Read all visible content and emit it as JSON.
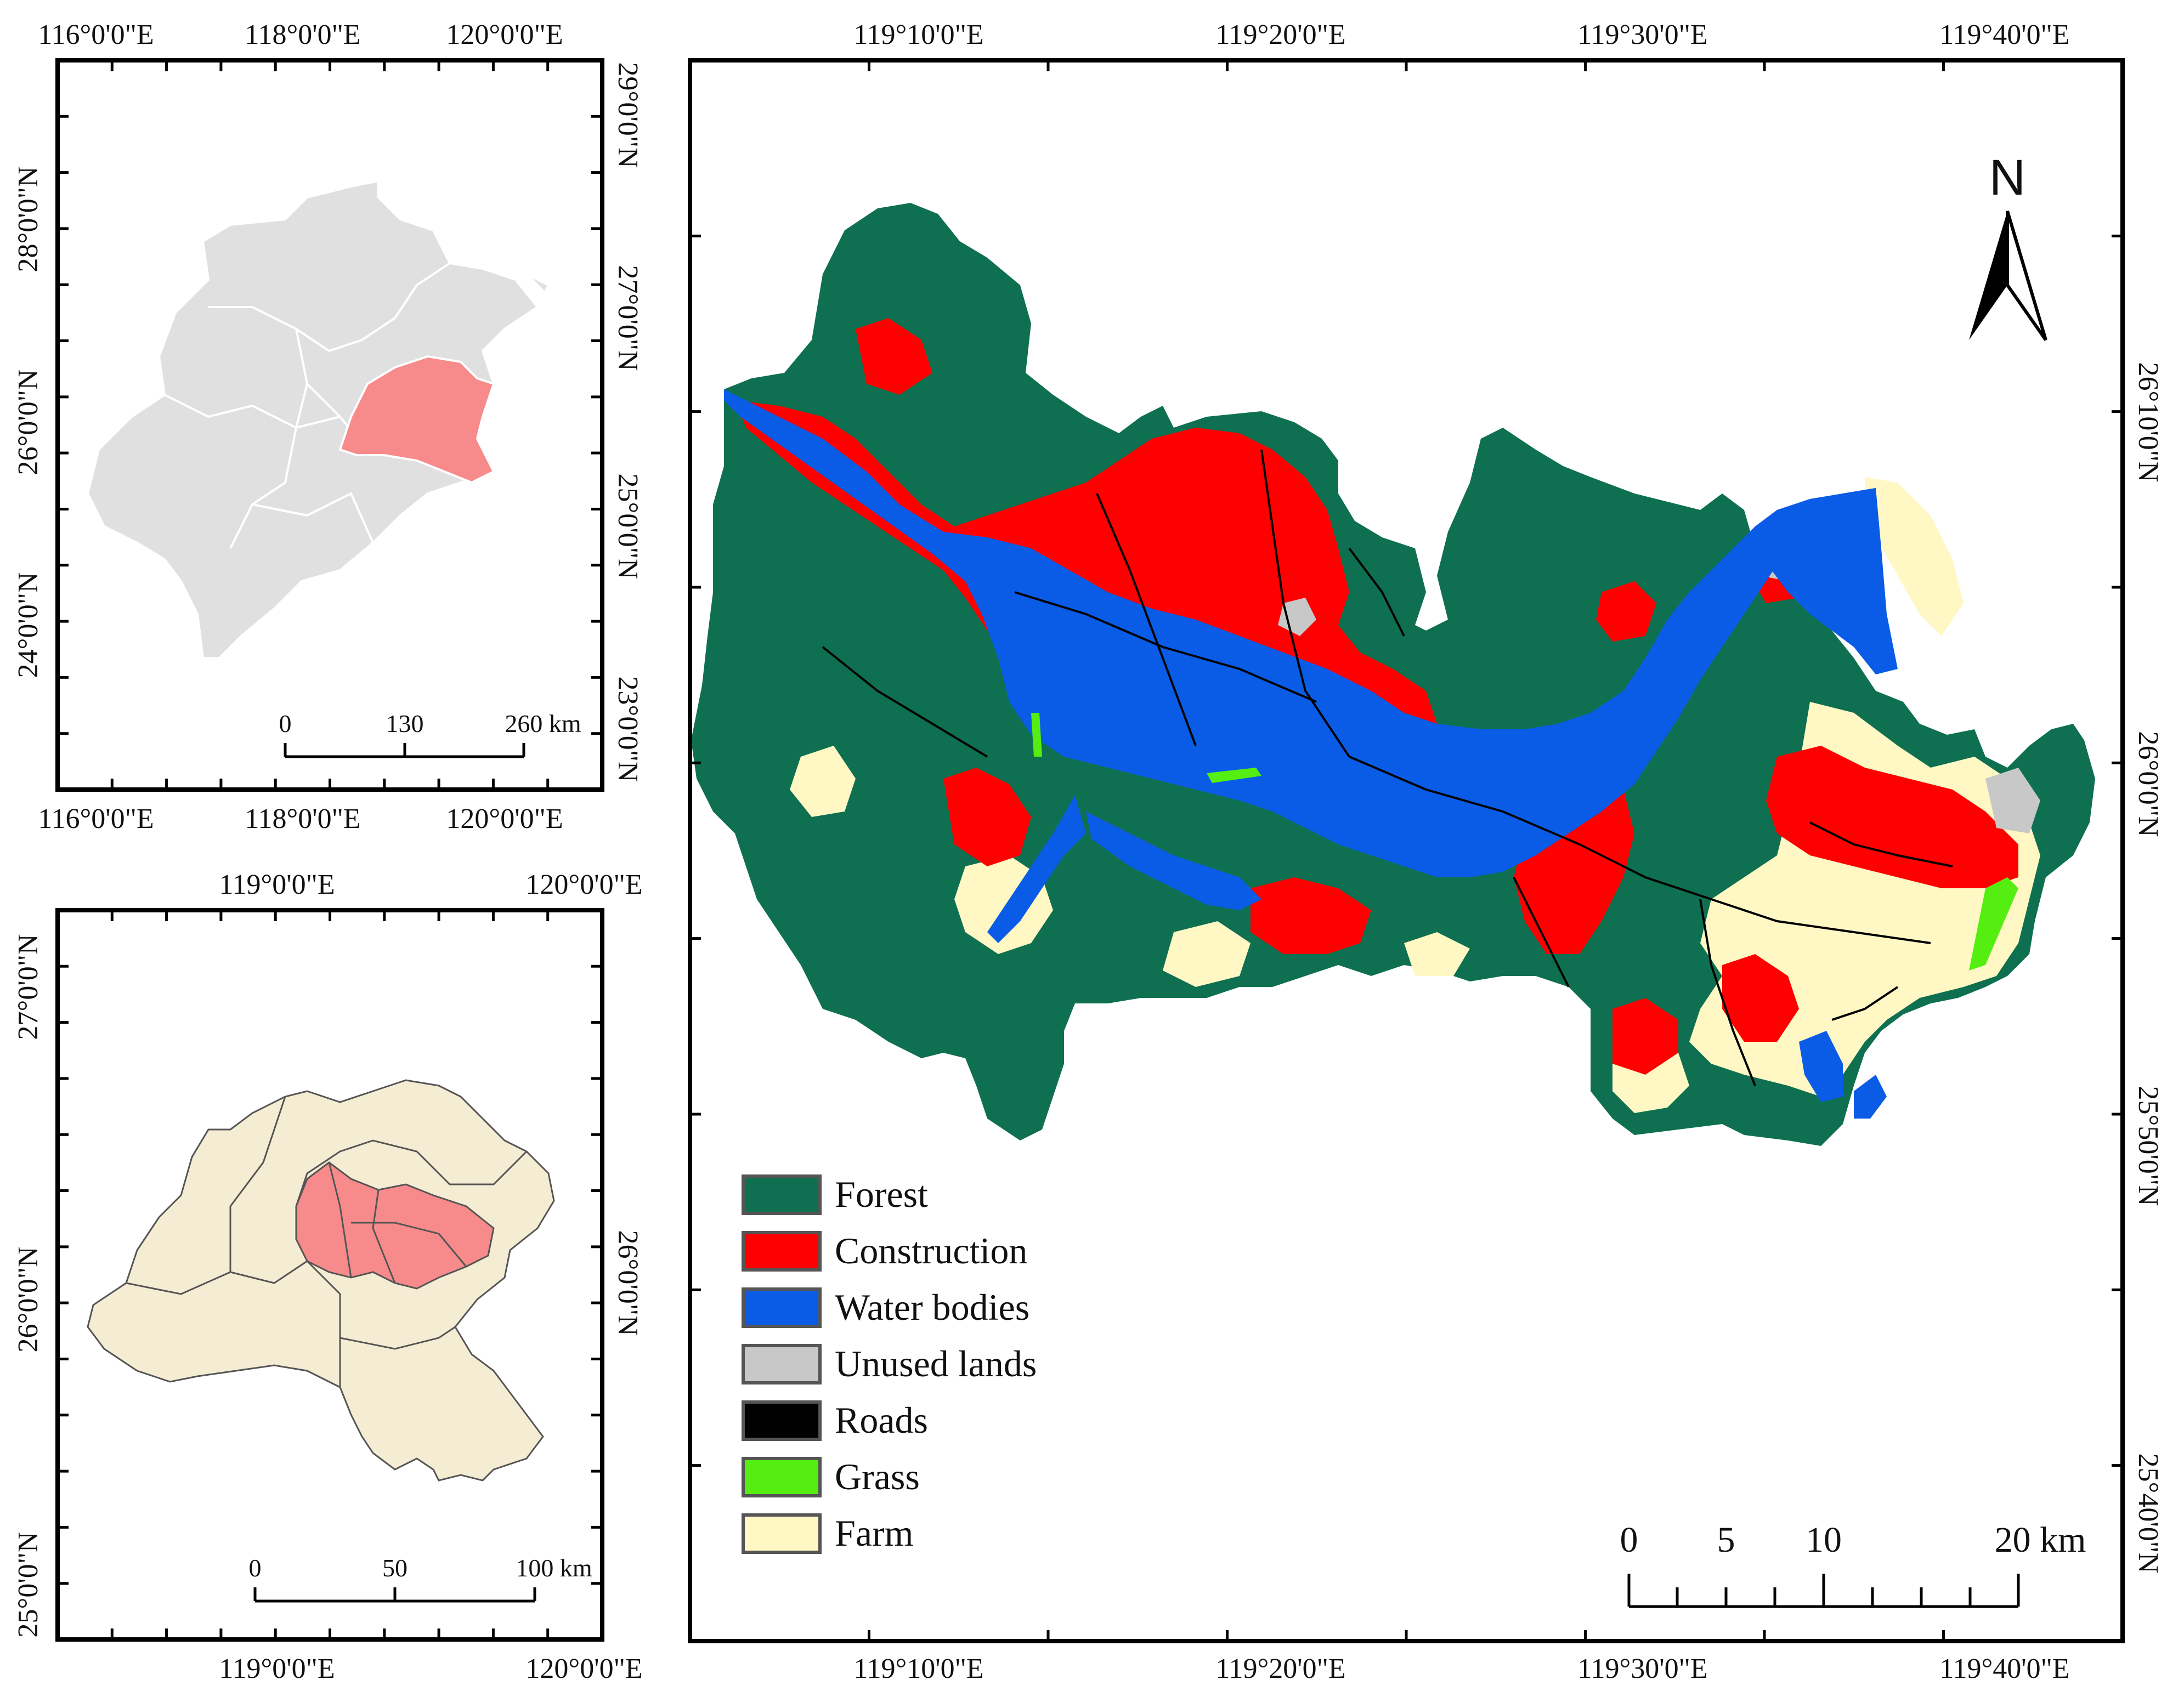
{
  "panels": {
    "fujian_overview": {
      "top_ticks": [
        "116°0'0\"E",
        "118°0'0\"E",
        "120°0'0\"E"
      ],
      "bottom_ticks": [
        "116°0'0\"E",
        "118°0'0\"E",
        "120°0'0\"E"
      ],
      "left_ticks": [
        "28°0'0\"N",
        "26°0'0\"N",
        "24°0'0\"N"
      ],
      "right_ticks": [
        "29°0'0\"N",
        "27°0'0\"N",
        "25°0'0\"N",
        "23°0'0\"N"
      ],
      "scale": {
        "labels": [
          "0",
          "130",
          "260 km"
        ]
      },
      "colors": {
        "land": "#e0e0e0",
        "highlight": "#f78a8a",
        "border": "#ffffff"
      }
    },
    "fuzhou_overview": {
      "top_ticks": [
        "119°0'0\"E",
        "120°0'0\"E"
      ],
      "bottom_ticks": [
        "119°0'0\"E",
        "120°0'0\"E"
      ],
      "left_ticks": [
        "27°0'0\"N",
        "26°0'0\"N",
        "25°0'0\"N"
      ],
      "right_ticks": [
        "26°0'0\"N"
      ],
      "scale": {
        "labels": [
          "0",
          "50",
          "100 km"
        ]
      },
      "colors": {
        "land": "#f5edd3",
        "highlight": "#f78a8a",
        "border": "#555555"
      }
    },
    "main_map": {
      "top_ticks": [
        "119°10'0\"E",
        "119°20'0\"E",
        "119°30'0\"E",
        "119°40'0\"E"
      ],
      "bottom_ticks": [
        "119°10'0\"E",
        "119°20'0\"E",
        "119°30'0\"E",
        "119°40'0\"E"
      ],
      "right_ticks": [
        "26°10'0\"N",
        "26°0'0\"N",
        "25°50'0\"N",
        "25°40'0\"N"
      ],
      "north_arrow": "N",
      "scale": {
        "labels": [
          "0",
          "5",
          "10",
          "20 km"
        ]
      },
      "legend": [
        {
          "label": "Forest",
          "color": "#0e7050"
        },
        {
          "label": "Construction",
          "color": "#ff0000"
        },
        {
          "label": "Water bodies",
          "color": "#0a5ce6"
        },
        {
          "label": "Unused lands",
          "color": "#c8c8c8"
        },
        {
          "label": "Roads",
          "color": "#000000"
        },
        {
          "label": "Grass",
          "color": "#55ee11"
        },
        {
          "label": "Farm",
          "color": "#fff8c4"
        }
      ]
    }
  }
}
